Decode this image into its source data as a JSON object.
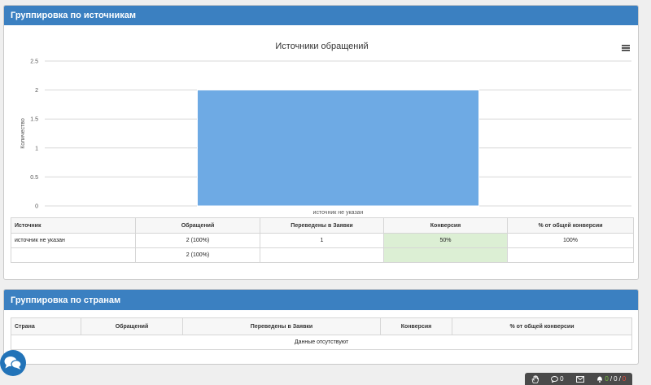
{
  "sources_panel": {
    "title": "Группировка по источникам",
    "chart_title": "Источники обращений",
    "menu_icon": "hamburger-menu-icon"
  },
  "chart_data": {
    "type": "bar",
    "title": "Источники обращений",
    "xlabel": "",
    "ylabel": "Количество",
    "categories": [
      "источник не указан"
    ],
    "values": [
      2
    ],
    "ylim": [
      0,
      2.5
    ],
    "yticks": [
      "0",
      "0.5",
      "1",
      "1.5",
      "2",
      "2.5"
    ],
    "bar_color": "#6eaae4",
    "grid": true
  },
  "sources_table": {
    "headers": [
      "Источник",
      "Обращений",
      "Переведены в Заявки",
      "Конверсия",
      "% от общей конверсии"
    ],
    "rows": [
      [
        "источник не указан",
        "2 (100%)",
        "1",
        "50%",
        "100%"
      ],
      [
        "",
        "2 (100%)",
        "",
        "",
        ""
      ]
    ]
  },
  "countries_panel": {
    "title": "Группировка по странам",
    "headers": [
      "Страна",
      "Обращений",
      "Переведены в Заявки",
      "Конверсия",
      "% от общей конверсии"
    ],
    "empty_text": "Данные отсутствуют"
  },
  "status_bar": {
    "chat_count": "0",
    "notif_green": "0",
    "notif_white": "0",
    "notif_red": "0",
    "sep": "/"
  },
  "colors": {
    "header_blue": "#3b80c1",
    "conversion_green": "#dcefd4",
    "chat_button": "#2273b8"
  }
}
